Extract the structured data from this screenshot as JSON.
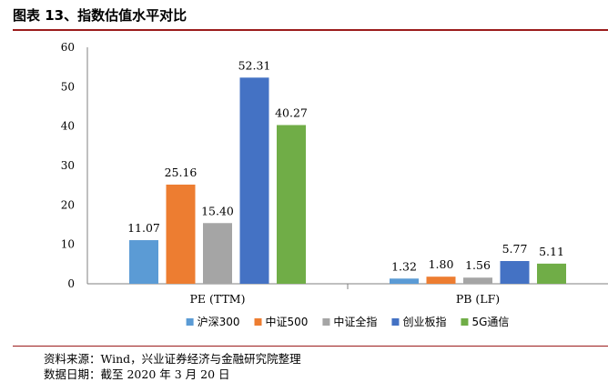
{
  "figure": {
    "title": "图表 13、指数估值水平对比"
  },
  "source": {
    "line1": "资料来源：Wind，兴业证券经济与金融研究院整理",
    "line2": "数据日期：截至 2020 年 3 月 20 日"
  },
  "chart_data": {
    "type": "bar",
    "title": "",
    "xlabel": "",
    "ylabel": "",
    "categories": [
      "PE (TTM)",
      "PB (LF)"
    ],
    "ylim": [
      0,
      60
    ],
    "yticks": [
      "0",
      "10",
      "20",
      "30",
      "40",
      "50",
      "60"
    ],
    "grid": false,
    "legend_position": "bottom",
    "series": [
      {
        "name": "沪深300",
        "color": "#5b9bd5",
        "values": [
          11.07,
          1.32
        ],
        "labels": [
          "11.07",
          "1.32"
        ]
      },
      {
        "name": "中证500",
        "color": "#ed7d31",
        "values": [
          25.16,
          1.8
        ],
        "labels": [
          "25.16",
          "1.80"
        ]
      },
      {
        "name": "中证全指",
        "color": "#a5a5a5",
        "values": [
          15.4,
          1.56
        ],
        "labels": [
          "15.40",
          "1.56"
        ]
      },
      {
        "name": "创业板指",
        "color": "#4472c4",
        "values": [
          52.31,
          5.77
        ],
        "labels": [
          "52.31",
          "5.77"
        ]
      },
      {
        "name": "5G通信",
        "color": "#70ad47",
        "values": [
          40.27,
          5.11
        ],
        "labels": [
          "40.27",
          "5.11"
        ]
      }
    ]
  }
}
